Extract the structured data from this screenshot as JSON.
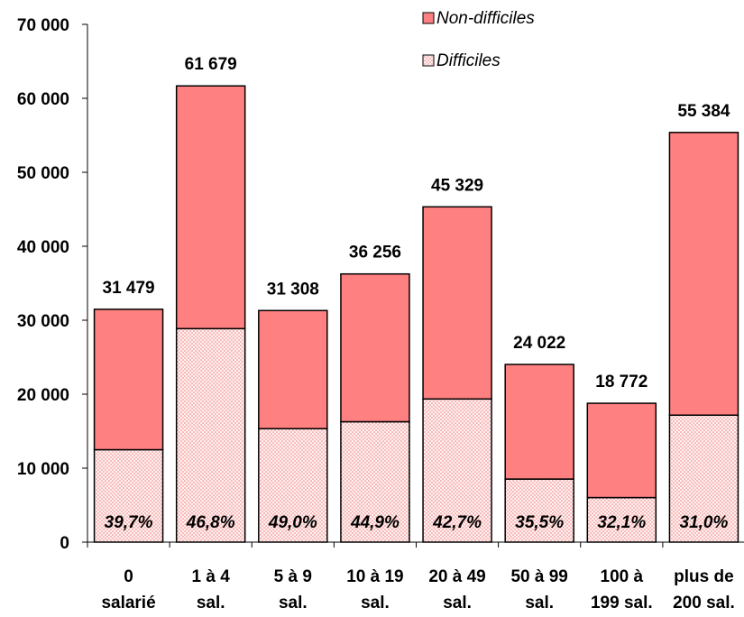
{
  "chart_data": {
    "type": "bar",
    "stacked": true,
    "title": "",
    "xlabel": "",
    "ylabel": "",
    "ylim": [
      0,
      70000
    ],
    "y_ticks": [
      0,
      10000,
      20000,
      30000,
      40000,
      50000,
      60000,
      70000
    ],
    "y_tick_labels": [
      "0",
      "10 000",
      "20 000",
      "30 000",
      "40 000",
      "50 000",
      "60 000",
      "70 000"
    ],
    "categories": [
      [
        "0",
        "salarié"
      ],
      [
        "1 à 4",
        "sal."
      ],
      [
        "5 à 9",
        "sal."
      ],
      [
        "10 à 19",
        "sal."
      ],
      [
        "20 à 49",
        "sal."
      ],
      [
        "50 à 99",
        "sal."
      ],
      [
        "100 à",
        "199 sal."
      ],
      [
        "plus de",
        "200 sal."
      ]
    ],
    "totals": [
      31479,
      61679,
      31308,
      36256,
      45329,
      24022,
      18772,
      55384
    ],
    "total_labels": [
      "31 479",
      "61 679",
      "31 308",
      "36 256",
      "45 329",
      "24 022",
      "18 772",
      "55 384"
    ],
    "difficile_share_labels": [
      "39,7%",
      "46,8%",
      "49,0%",
      "44,9%",
      "42,7%",
      "35,5%",
      "32,1%",
      "31,0%"
    ],
    "series": [
      {
        "name": "Difficiles",
        "values": [
          12497,
          28866,
          15341,
          16279,
          19355,
          8528,
          6026,
          17169
        ],
        "color": "#ffcccc",
        "pattern": "dotted"
      },
      {
        "name": "Non-difficiles",
        "values": [
          18982,
          32813,
          15967,
          19977,
          25974,
          15494,
          12746,
          38215
        ],
        "color": "#ff8080"
      }
    ],
    "legend_position": "top-right",
    "legend": [
      {
        "name": "Non-difficiles",
        "color": "#ff8080"
      },
      {
        "name": "Difficiles",
        "color": "#ffcccc",
        "pattern": "dotted"
      }
    ],
    "grid": false
  }
}
